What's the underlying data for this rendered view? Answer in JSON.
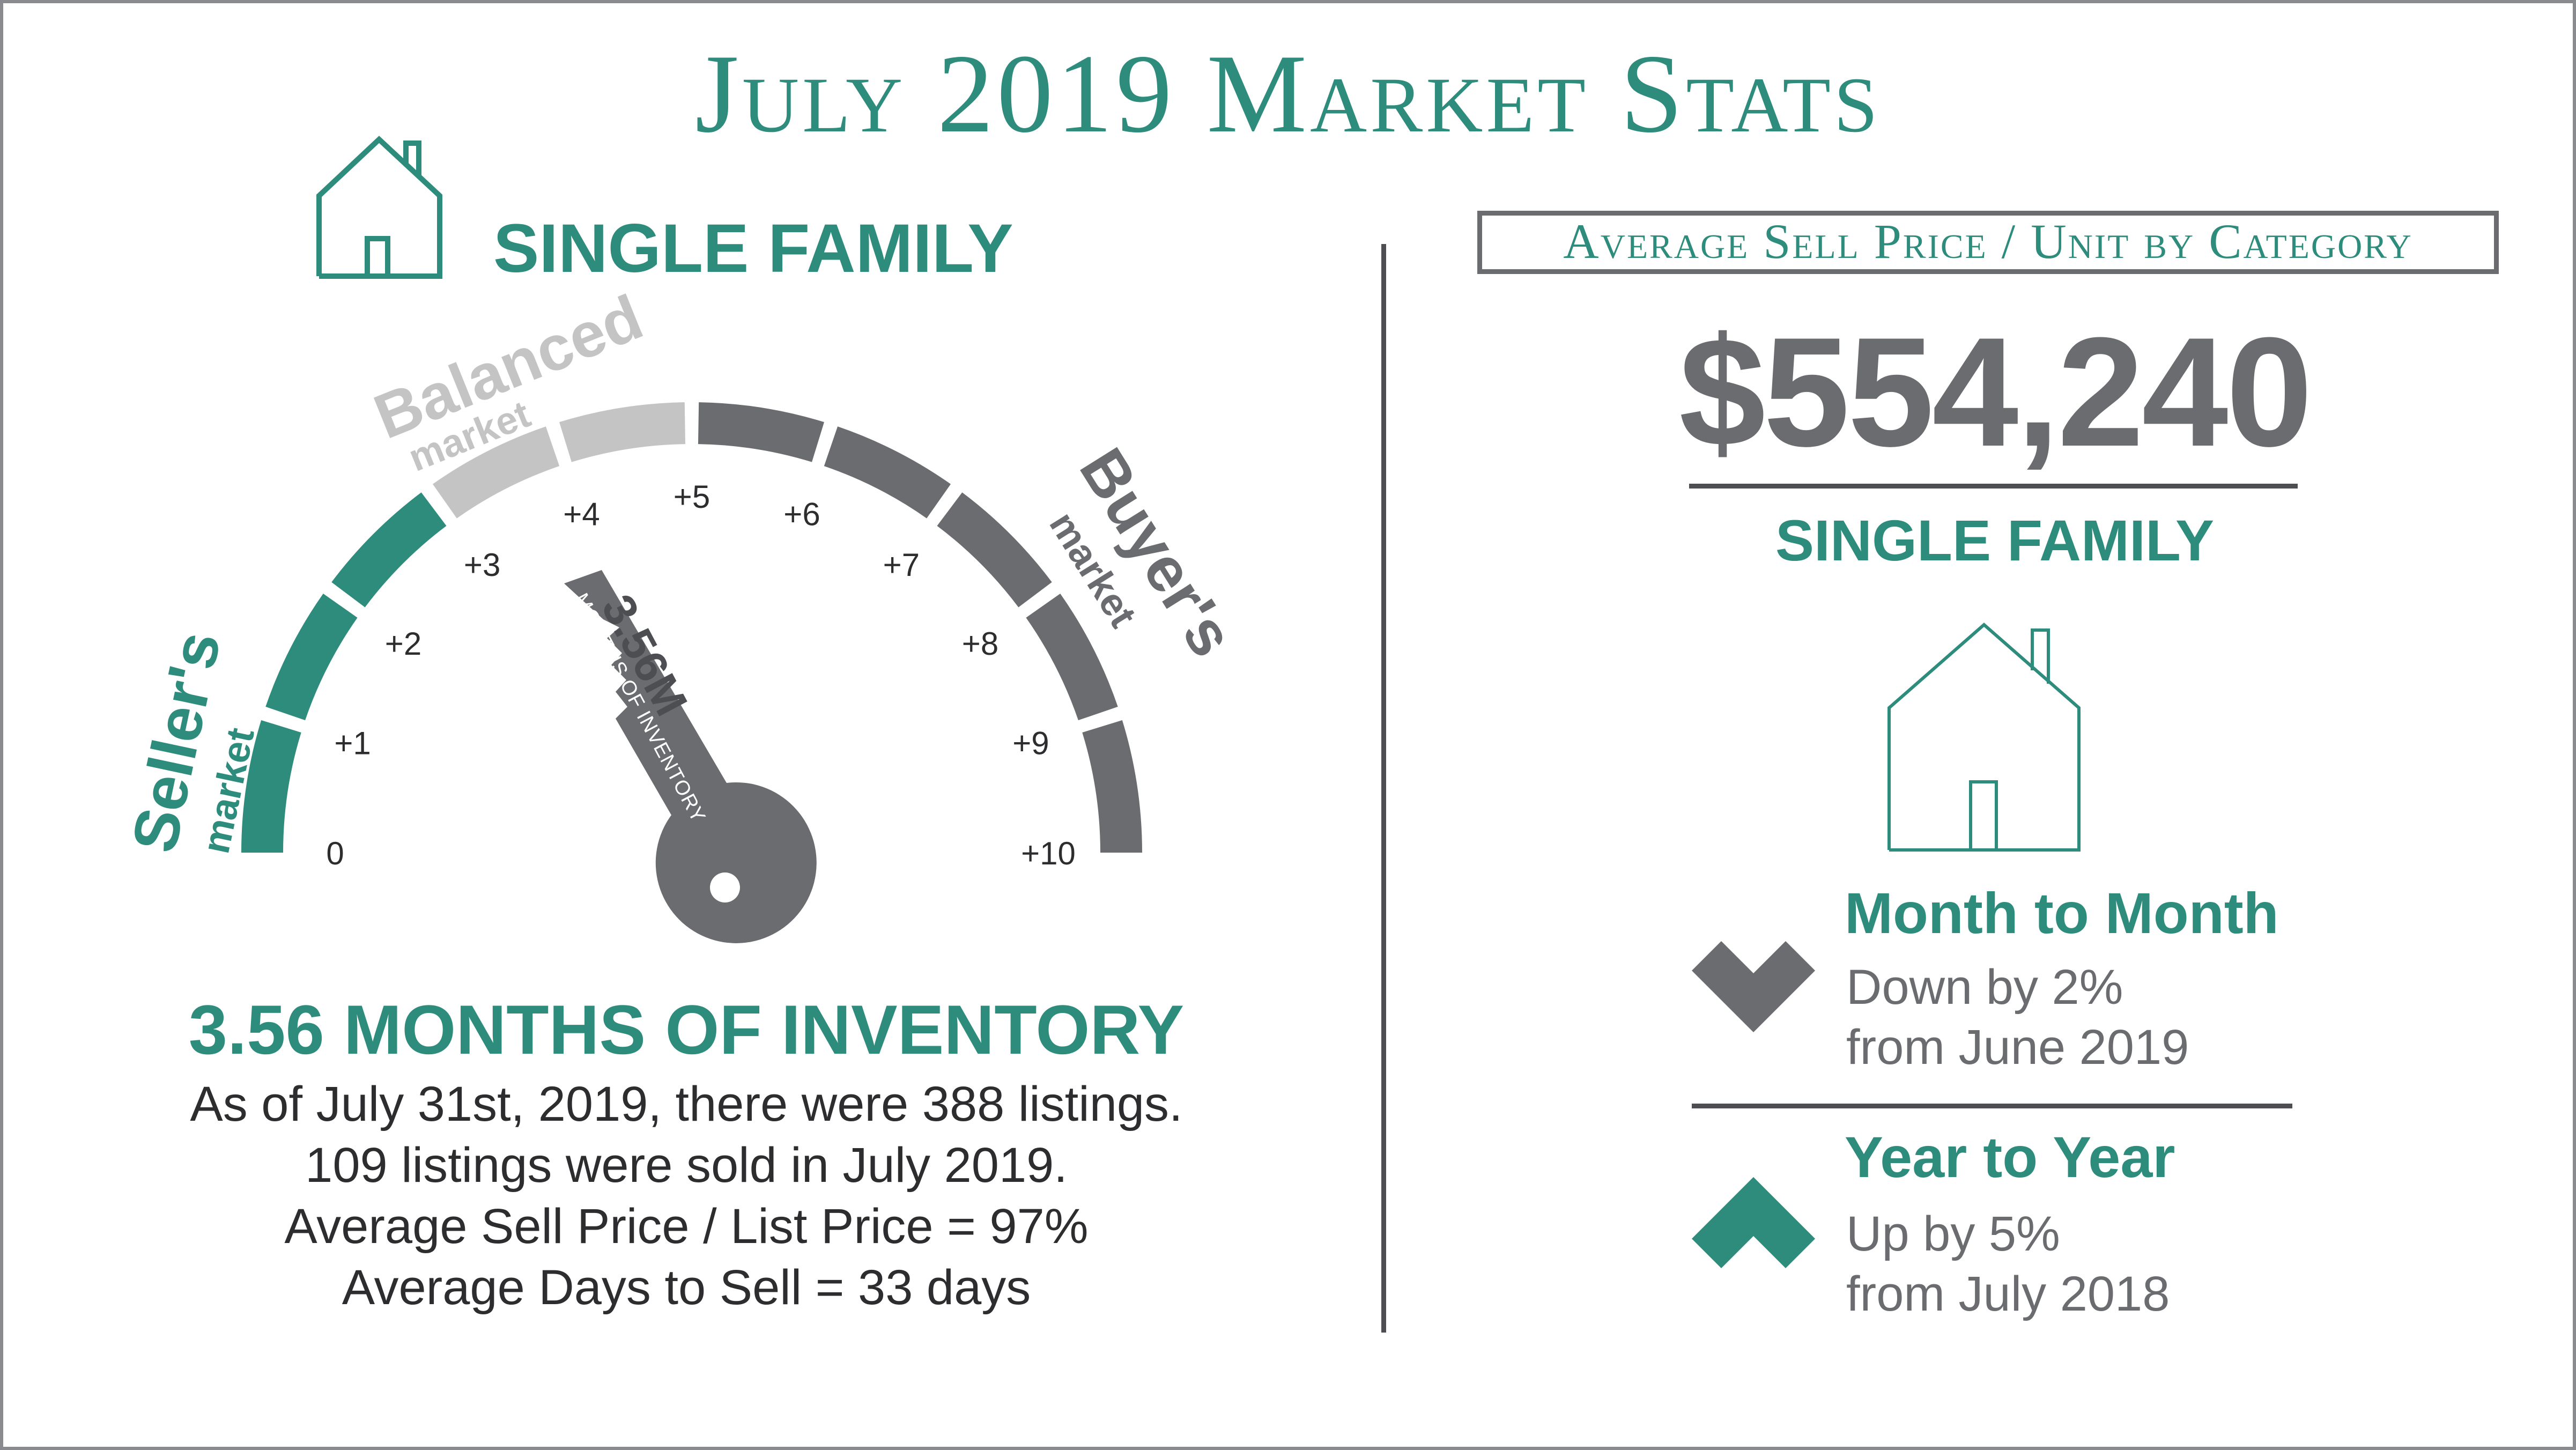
{
  "title": "July 2019 Market Stats",
  "left": {
    "category_label": "SINGLE FAMILY",
    "gauge": {
      "labels": {
        "balanced_big": "Balanced",
        "balanced_small": "market",
        "seller_big": "Seller's",
        "seller_small": "market",
        "buyer_big": "Buyer's",
        "buyer_small": "market"
      },
      "ticks": [
        "0",
        "+1",
        "+2",
        "+3",
        "+4",
        "+5",
        "+6",
        "+7",
        "+8",
        "+9",
        "+10"
      ],
      "key_value": "3.56M",
      "key_caption": "MONTHS OF INVENTORY",
      "needle_value": 3.56,
      "scale_max": 10
    },
    "headline": "3.56 MONTHS OF INVENTORY",
    "lines": [
      "As of July 31st, 2019, there were 388 listings.",
      "109 listings were sold in July 2019.",
      "Average Sell Price / List Price = 97%",
      "Average Days to Sell = 33 days"
    ]
  },
  "right": {
    "box_title": "Average Sell Price / Unit by Category",
    "price": "$554,240",
    "category_label": "SINGLE FAMILY",
    "month_to_month": {
      "title": "Month to Month",
      "line1": "Down by 2%",
      "line2": "from June 2019",
      "icon": "chevron-down-icon"
    },
    "year_to_year": {
      "title": "Year to Year",
      "line1": "Up by 5%",
      "line2": "from July 2018",
      "icon": "chevron-up-icon"
    }
  },
  "colors": {
    "teal": "#2e8c7c",
    "dark_grey": "#6b6c70",
    "light_grey": "#c4c4c4",
    "text": "#2d2d2f"
  }
}
